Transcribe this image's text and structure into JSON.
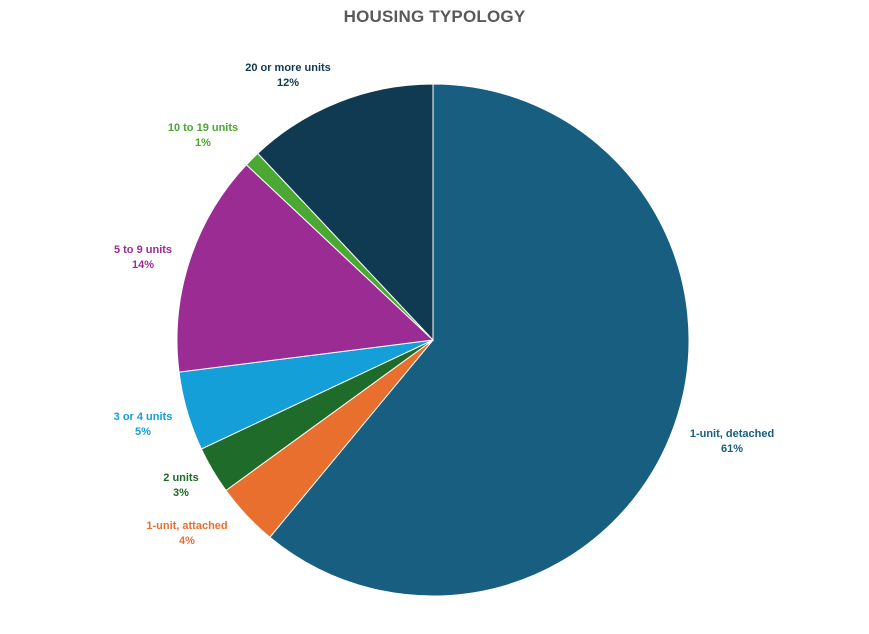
{
  "chart_data": {
    "type": "pie",
    "title": "HOUSING TYPOLOGY",
    "categories": [
      "1-unit, detached",
      "1-unit, attached",
      "2 units",
      "3 or 4 units",
      "5 to 9 units",
      "10 to 19 units",
      "20 or more units"
    ],
    "values": [
      61,
      4,
      3,
      5,
      14,
      1,
      12
    ],
    "value_labels": [
      "61%",
      "4%",
      "3%",
      "5%",
      "14%",
      "1%",
      "12%"
    ],
    "colors": [
      "#175E80",
      "#E96F2F",
      "#1E6B2A",
      "#149FD8",
      "#9B2C94",
      "#4BA832",
      "#103A52"
    ],
    "label_colors": [
      "#175E80",
      "#E96F2F",
      "#1E6B2A",
      "#149FD8",
      "#9B2C94",
      "#4BA832",
      "#103A52"
    ],
    "start_angle_deg": 0,
    "direction": "clockwise",
    "legend": "none",
    "label_position": "outside"
  }
}
